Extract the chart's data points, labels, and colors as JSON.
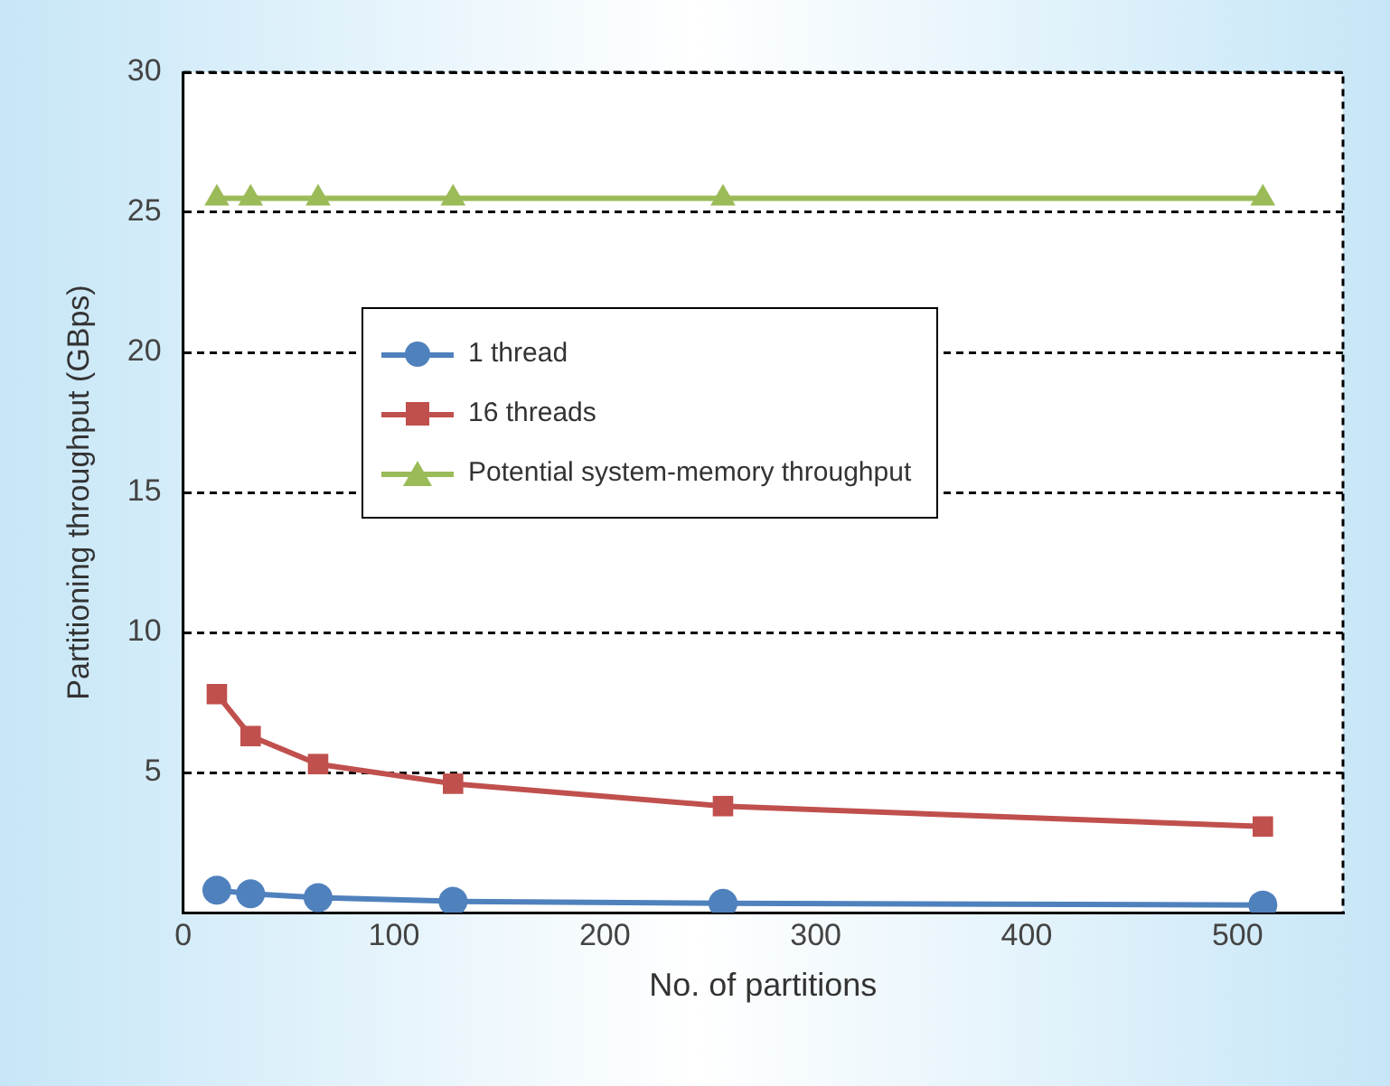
{
  "chart_data": {
    "type": "line",
    "xlabel": "No. of partitions",
    "ylabel": "Partitioning throughput (GBps)",
    "x": [
      16,
      32,
      64,
      128,
      256,
      512
    ],
    "series": [
      {
        "name": "1 thread",
        "color": "#4f81bd",
        "marker": "circle",
        "values": [
          0.8,
          0.67,
          0.53,
          0.4,
          0.33,
          0.27
        ]
      },
      {
        "name": "16 threads",
        "color": "#c0504d",
        "marker": "square",
        "values": [
          7.8,
          6.3,
          5.3,
          4.6,
          3.8,
          3.07
        ]
      },
      {
        "name": "Potential system-memory throughput",
        "color": "#9bbb59",
        "marker": "triangle",
        "values": [
          25.5,
          25.5,
          25.5,
          25.5,
          25.5,
          25.5
        ]
      }
    ],
    "xlim": [
      0,
      550
    ],
    "xticks": [
      0,
      100,
      200,
      300,
      400,
      500
    ],
    "ylim": [
      0,
      30
    ],
    "yticks": [
      5,
      10,
      15,
      20,
      25,
      30
    ],
    "grid": "y",
    "legend": "top left",
    "line_style": "solid"
  }
}
